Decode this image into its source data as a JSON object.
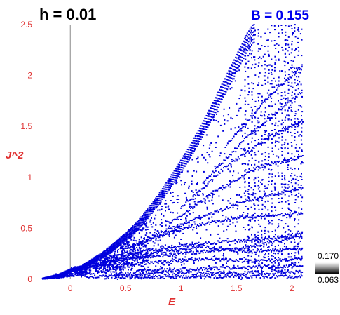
{
  "chart_data": {
    "type": "scatter",
    "title_left": "h = 0.01",
    "title_right": "B = 0.155",
    "xlabel": "E",
    "ylabel": "J^2",
    "xlim": [
      -0.28,
      2.1
    ],
    "ylim": [
      0,
      2.5
    ],
    "x_ticks": [
      "0",
      "0.5",
      "1",
      "1.5",
      "2"
    ],
    "y_ticks": [
      "0",
      "0.5",
      "1",
      "1.5",
      "2",
      "2.5"
    ],
    "x_tick_values": [
      0,
      0.5,
      1,
      1.5,
      2
    ],
    "y_tick_values": [
      0,
      0.5,
      1,
      1.5,
      2,
      2.5
    ],
    "reference_line_x": 0,
    "point_color": "#0000dd",
    "colorbar": {
      "max_label": "0.170",
      "min_label": "0.063"
    },
    "envelope": [
      [
        -0.28,
        0.0
      ],
      [
        -0.1,
        0.05
      ],
      [
        0.0,
        0.1
      ],
      [
        0.1,
        0.13
      ],
      [
        0.2,
        0.2
      ],
      [
        0.3,
        0.27
      ],
      [
        0.4,
        0.36
      ],
      [
        0.5,
        0.45
      ],
      [
        0.6,
        0.56
      ],
      [
        0.7,
        0.69
      ],
      [
        0.8,
        0.84
      ],
      [
        0.9,
        1.0
      ],
      [
        1.0,
        1.17
      ],
      [
        1.1,
        1.35
      ],
      [
        1.2,
        1.55
      ],
      [
        1.3,
        1.76
      ],
      [
        1.4,
        1.98
      ],
      [
        1.5,
        2.2
      ],
      [
        1.6,
        2.42
      ],
      [
        1.65,
        2.5
      ]
    ],
    "bands": [
      [
        [
          0.0,
          0.1
        ],
        [
          0.5,
          0.2
        ],
        [
          1.0,
          0.25
        ],
        [
          1.5,
          0.3
        ],
        [
          2.1,
          0.42
        ]
      ],
      [
        [
          0.2,
          0.12
        ],
        [
          0.7,
          0.16
        ],
        [
          1.2,
          0.2
        ],
        [
          1.7,
          0.18
        ],
        [
          2.1,
          0.2
        ]
      ],
      [
        [
          0.3,
          0.2
        ],
        [
          0.8,
          0.3
        ],
        [
          1.3,
          0.36
        ],
        [
          1.8,
          0.4
        ],
        [
          2.1,
          0.45
        ]
      ],
      [
        [
          0.5,
          0.3
        ],
        [
          1.0,
          0.5
        ],
        [
          1.5,
          0.6
        ],
        [
          2.1,
          0.65
        ]
      ],
      [
        [
          0.6,
          0.08
        ],
        [
          1.1,
          0.1
        ],
        [
          1.6,
          0.12
        ],
        [
          2.1,
          0.13
        ]
      ],
      [
        [
          0.4,
          0.05
        ],
        [
          1.0,
          0.06
        ],
        [
          1.6,
          0.06
        ],
        [
          2.1,
          0.07
        ]
      ],
      [
        [
          0.7,
          0.4
        ],
        [
          1.2,
          0.62
        ],
        [
          1.7,
          0.8
        ],
        [
          2.1,
          0.9
        ]
      ],
      [
        [
          0.9,
          0.55
        ],
        [
          1.3,
          0.85
        ],
        [
          1.7,
          1.1
        ],
        [
          2.1,
          1.2
        ]
      ],
      [
        [
          1.0,
          0.7
        ],
        [
          1.4,
          1.1
        ],
        [
          1.8,
          1.4
        ],
        [
          2.1,
          1.55
        ]
      ],
      [
        [
          1.2,
          0.95
        ],
        [
          1.6,
          1.4
        ],
        [
          2.1,
          1.85
        ]
      ],
      [
        [
          1.4,
          1.3
        ],
        [
          1.8,
          1.8
        ],
        [
          2.1,
          2.1
        ]
      ],
      [
        [
          0.1,
          0.03
        ],
        [
          0.8,
          0.02
        ],
        [
          1.5,
          0.03
        ],
        [
          2.1,
          0.02
        ]
      ],
      [
        [
          -0.15,
          0.03
        ],
        [
          0.1,
          0.11
        ],
        [
          0.35,
          0.18
        ],
        [
          0.6,
          0.22
        ],
        [
          0.9,
          0.28
        ],
        [
          1.2,
          0.32
        ],
        [
          1.6,
          0.27
        ],
        [
          2.1,
          0.3
        ]
      ]
    ]
  }
}
